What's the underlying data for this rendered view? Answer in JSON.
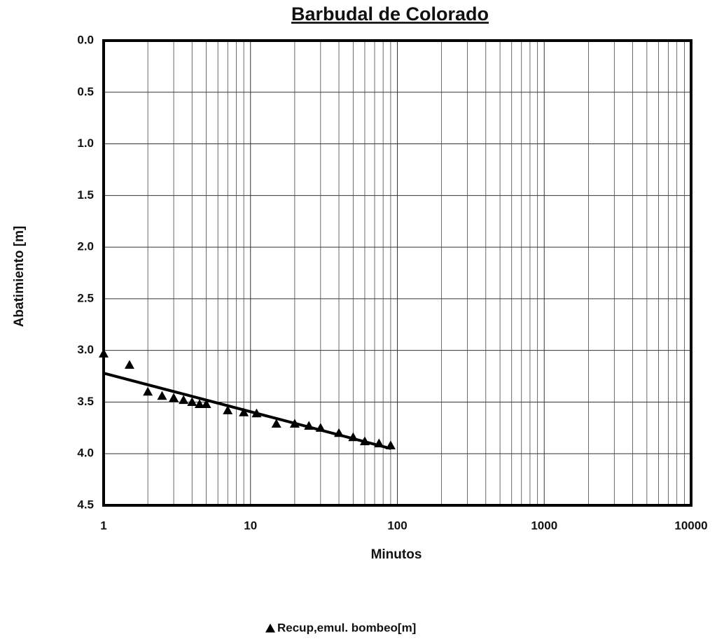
{
  "chart_data": {
    "type": "scatter",
    "title": "Barbudal de Colorado",
    "xlabel": "Minutos",
    "ylabel": "Abatimiento [m]",
    "xscale": "log",
    "yinverted": true,
    "grid": true,
    "minor_grid": true,
    "legend": "bottom",
    "xlim": [
      1,
      10000
    ],
    "xticks": [
      1,
      10,
      100,
      1000,
      10000
    ],
    "ylim": [
      0,
      4.5
    ],
    "yticks": [
      {
        "value": 0,
        "label": "0.0"
      },
      0.5,
      {
        "value": 1,
        "label": "1.0"
      },
      1.5,
      {
        "value": 2,
        "label": "2.0"
      },
      2.5,
      {
        "value": 3,
        "label": "3.0"
      },
      3.5,
      {
        "value": 4,
        "label": "4.0"
      },
      4.5
    ],
    "series": [
      {
        "name": "Recup,emul. bombeo[m]",
        "color": "#000000",
        "x": [
          1,
          1.5,
          2,
          2.5,
          3,
          3.5,
          4,
          4.5,
          5,
          7,
          9,
          11,
          15,
          20,
          25,
          30,
          40,
          50,
          60,
          75,
          90
        ],
        "values": [
          3.03,
          3.14,
          3.4,
          3.44,
          3.46,
          3.48,
          3.5,
          3.52,
          3.52,
          3.58,
          3.6,
          3.61,
          3.71,
          3.71,
          3.73,
          3.75,
          3.8,
          3.84,
          3.88,
          3.9,
          3.92
        ]
      }
    ],
    "trendline": {
      "color": "#000000",
      "x": [
        1,
        90
      ],
      "values": [
        3.22,
        3.95
      ]
    }
  }
}
